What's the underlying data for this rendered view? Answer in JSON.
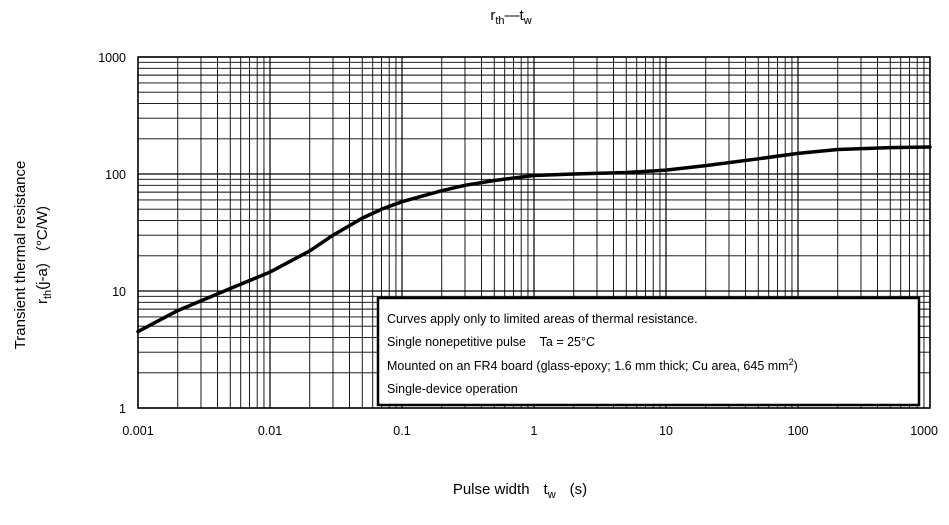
{
  "chart_data": {
    "type": "line",
    "title": {
      "main": "r",
      "main_sub": "th",
      "sep": "—",
      "sec": "t",
      "sec_sub": "w"
    },
    "xlabel": {
      "text": "Pulse width",
      "sym": "t",
      "sym_sub": "w",
      "unit": "(s)"
    },
    "ylabel": {
      "line1": "Transient thermal resistance",
      "sym": "r",
      "sym_sub": "th",
      "sym_rest": "(j-a)",
      "unit": "(°C/W)"
    },
    "x_scale": "log",
    "y_scale": "log",
    "xlim": [
      0.001,
      1000
    ],
    "ylim": [
      1,
      1000
    ],
    "grid": true,
    "x_ticks": [
      "0.001",
      "0.01",
      "0.1",
      "1",
      "10",
      "100",
      "1000"
    ],
    "y_ticks": [
      "1",
      "10",
      "100",
      "1000"
    ],
    "series": [
      {
        "x": [
          0.001,
          0.002,
          0.005,
          0.01,
          0.02,
          0.03,
          0.05,
          0.07,
          0.1,
          0.2,
          0.3,
          0.5,
          1,
          2,
          5,
          10,
          20,
          50,
          100,
          200,
          500,
          1000
        ],
        "values": [
          4.5,
          6.8,
          10.5,
          14.5,
          22,
          30,
          42,
          50,
          58,
          72,
          80,
          88,
          97,
          100,
          103,
          108,
          118,
          135,
          150,
          162,
          168,
          170
        ]
      }
    ],
    "annotation": {
      "lines": [
        {
          "text": "Curves apply only to limited areas of thermal resistance."
        },
        {
          "text": "Single nonepetitive pulse    Ta = 25°C"
        },
        {
          "text": "Mounted on an FR4 board (glass-epoxy; 1.6 mm thick; Cu area, 645 mm",
          "sup": "2",
          "tail": ")"
        },
        {
          "text": "Single-device operation"
        }
      ]
    }
  }
}
